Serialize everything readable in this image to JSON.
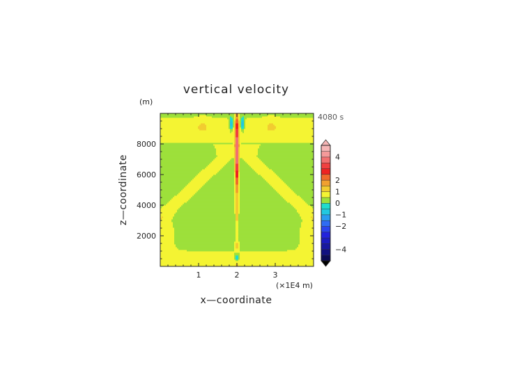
{
  "chart_data": {
    "type": "heatmap",
    "title": "vertical velocity",
    "xlabel": "x—coordinate",
    "ylabel": "z—coordinate",
    "y_unit": "(m)",
    "x_unit": "(×1E4 m)",
    "time_label": "4080 s",
    "xlim": [
      0,
      4
    ],
    "ylim": [
      0,
      10000
    ],
    "x_ticks": [
      "1",
      "2",
      "3"
    ],
    "x_tick_values": [
      1,
      2,
      3
    ],
    "y_ticks": [
      "2000",
      "4000",
      "6000",
      "8000"
    ],
    "y_tick_values": [
      2000,
      4000,
      6000,
      8000
    ],
    "colorbar": {
      "levels": [
        -5,
        -4.5,
        -4,
        -3.5,
        -3,
        -2.5,
        -2,
        -1.5,
        -1,
        -0.5,
        0,
        0.5,
        1,
        1.5,
        2,
        2.5,
        3,
        3.5,
        4,
        4.5,
        5
      ],
      "colors": [
        "#0a0a55",
        "#101080",
        "#1818a0",
        "#1c1cc0",
        "#2222dd",
        "#2a44ee",
        "#2e6cf4",
        "#2a9cf0",
        "#22c8e0",
        "#20dccc",
        "#9de03b",
        "#f4f433",
        "#f2cc30",
        "#f0a030",
        "#f06a2c",
        "#ee2222",
        "#f04040",
        "#f27070",
        "#f49a9a",
        "#f6b6b6"
      ],
      "tick_labels": [
        "4",
        "2",
        "1",
        "0",
        "−1",
        "−2",
        "−4"
      ],
      "tick_values": [
        4,
        2,
        1,
        0,
        -1,
        -2,
        -4
      ],
      "extend": "both"
    },
    "grid": false
  }
}
